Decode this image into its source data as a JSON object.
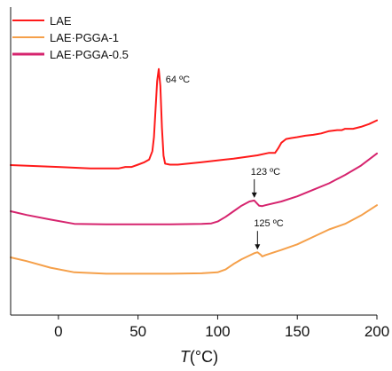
{
  "chart_data": {
    "type": "line",
    "xlabel_symbol": "T",
    "xlabel_unit": "(°C)",
    "xlim": [
      -30,
      200
    ],
    "xticks": [
      0,
      50,
      100,
      150,
      200
    ],
    "grid": false,
    "legend_position": "top-left",
    "series": [
      {
        "name": "LAE",
        "color": "#ff1a1a",
        "x": [
          -30,
          0,
          20,
          38,
          42,
          46,
          50,
          54,
          57,
          59,
          60,
          61,
          62,
          63,
          64,
          65,
          66,
          67,
          70,
          75,
          90,
          110,
          125,
          132,
          136,
          138,
          140,
          143,
          146,
          150,
          155,
          160,
          165,
          170,
          175,
          178,
          180,
          185,
          190,
          195,
          200
        ],
        "y": [
          0.0,
          -0.2,
          -0.35,
          -0.35,
          -0.2,
          -0.2,
          0.05,
          0.3,
          0.6,
          1.5,
          3.0,
          6.0,
          9.0,
          10.3,
          8.5,
          4.0,
          1.0,
          0.15,
          0.05,
          0.05,
          0.3,
          0.7,
          1.05,
          1.3,
          1.3,
          1.8,
          2.4,
          2.8,
          2.9,
          3.0,
          3.15,
          3.25,
          3.4,
          3.65,
          3.75,
          3.75,
          3.9,
          3.9,
          4.1,
          4.4,
          4.8
        ]
      },
      {
        "name": "LAE·PGGA-1",
        "color": "#f5a04a",
        "x": [
          -30,
          -20,
          -5,
          10,
          30,
          50,
          70,
          90,
          100,
          105,
          110,
          115,
          120,
          123,
          125,
          127,
          128,
          130,
          140,
          150,
          160,
          170,
          180,
          190,
          200
        ],
        "y": [
          0.0,
          -0.4,
          -1.1,
          -1.6,
          -1.75,
          -1.75,
          -1.75,
          -1.7,
          -1.6,
          -1.3,
          -0.7,
          -0.2,
          0.2,
          0.45,
          0.55,
          0.3,
          0.1,
          0.25,
          0.8,
          1.4,
          2.2,
          3.0,
          3.6,
          4.5,
          5.6
        ]
      },
      {
        "name": "LAE·PGGA-0.5",
        "color": "#d6246e",
        "x": [
          -30,
          -20,
          -5,
          10,
          30,
          50,
          70,
          90,
          96,
          100,
          105,
          110,
          115,
          120,
          123,
          126,
          128,
          130,
          140,
          150,
          160,
          170,
          180,
          190,
          200
        ],
        "y": [
          0.0,
          -0.4,
          -0.9,
          -1.35,
          -1.4,
          -1.4,
          -1.4,
          -1.35,
          -1.3,
          -1.1,
          -0.6,
          0.0,
          0.6,
          1.05,
          1.15,
          0.6,
          0.55,
          0.65,
          1.05,
          1.6,
          2.3,
          3.0,
          3.9,
          4.9,
          6.2
        ]
      }
    ],
    "annotations": [
      {
        "text": "64 ºC",
        "series": 0,
        "x": 64
      },
      {
        "text": "123 ºC",
        "series": 2,
        "x": 123
      },
      {
        "text": "125 ºC",
        "series": 1,
        "x": 125
      }
    ]
  }
}
